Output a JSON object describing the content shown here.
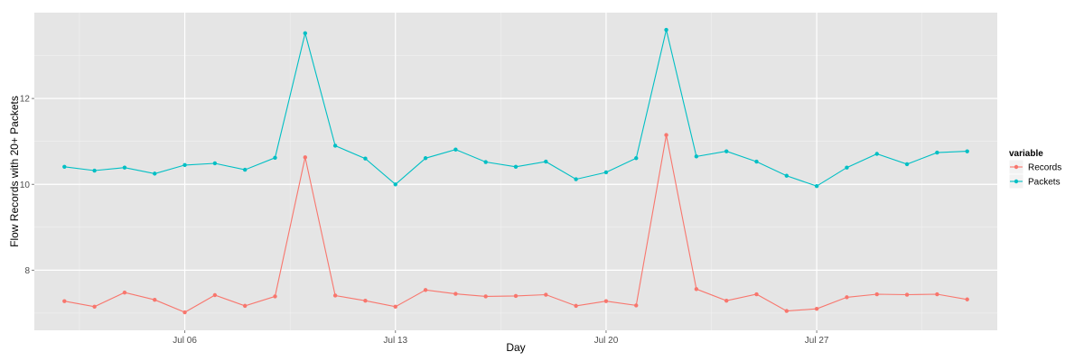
{
  "chart_data": {
    "type": "line",
    "xlabel": "Day",
    "ylabel": "Flow Records with 20+ Packets",
    "x": [
      "2014-07-02",
      "2014-07-03",
      "2014-07-04",
      "2014-07-05",
      "2014-07-06",
      "2014-07-07",
      "2014-07-08",
      "2014-07-09",
      "2014-07-10",
      "2014-07-11",
      "2014-07-12",
      "2014-07-13",
      "2014-07-14",
      "2014-07-15",
      "2014-07-16",
      "2014-07-17",
      "2014-07-18",
      "2014-07-19",
      "2014-07-20",
      "2014-07-21",
      "2014-07-22",
      "2014-07-23",
      "2014-07-24",
      "2014-07-25",
      "2014-07-26",
      "2014-07-27",
      "2014-07-28",
      "2014-07-29",
      "2014-07-30",
      "2014-07-31",
      "2014-08-01"
    ],
    "xlim": [
      "2014-07-01",
      "2014-08-02"
    ],
    "ylim": [
      6.6,
      14.0
    ],
    "x_ticks": [
      {
        "date": "2014-07-06",
        "label": "Jul 06"
      },
      {
        "date": "2014-07-13",
        "label": "Jul 13"
      },
      {
        "date": "2014-07-20",
        "label": "Jul 20"
      },
      {
        "date": "2014-07-27",
        "label": "Jul 27"
      }
    ],
    "y_ticks": [
      8,
      10,
      12
    ],
    "grid": true,
    "legend": {
      "title": "variable",
      "position": "right"
    },
    "series": [
      {
        "name": "Records",
        "color": "#f8766d",
        "values": [
          7.28,
          7.15,
          7.48,
          7.31,
          7.02,
          7.42,
          7.17,
          7.39,
          10.63,
          7.41,
          7.29,
          7.15,
          7.54,
          7.45,
          7.39,
          7.4,
          7.43,
          7.17,
          7.28,
          7.18,
          11.15,
          7.56,
          7.29,
          7.44,
          7.05,
          7.1,
          7.37,
          7.44,
          7.43,
          7.44,
          7.32
        ]
      },
      {
        "name": "Packets",
        "color": "#00bfc4",
        "values": [
          10.41,
          10.32,
          10.39,
          10.25,
          10.45,
          10.49,
          10.34,
          10.62,
          13.52,
          10.9,
          10.6,
          10.0,
          10.61,
          10.81,
          10.52,
          10.41,
          10.53,
          10.12,
          10.28,
          10.61,
          13.6,
          10.65,
          10.77,
          10.53,
          10.2,
          9.96,
          10.39,
          10.71,
          10.47,
          10.74,
          10.77
        ]
      }
    ]
  }
}
